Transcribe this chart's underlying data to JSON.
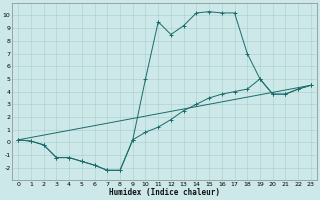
{
  "xlabel": "Humidex (Indice chaleur)",
  "background_color": "#cce8e8",
  "grid_color": "#aacccc",
  "line_color": "#1a6b6b",
  "xlim": [
    -0.5,
    23.5
  ],
  "ylim": [
    -3,
    11
  ],
  "xticks": [
    0,
    1,
    2,
    3,
    4,
    5,
    6,
    7,
    8,
    9,
    10,
    11,
    12,
    13,
    14,
    15,
    16,
    17,
    18,
    19,
    20,
    21,
    22,
    23
  ],
  "yticks": [
    -2,
    -1,
    0,
    1,
    2,
    3,
    4,
    5,
    6,
    7,
    8,
    9,
    10
  ],
  "line1_x": [
    0,
    1,
    2,
    3,
    4,
    5,
    6,
    7,
    8,
    9,
    10,
    11,
    12,
    13,
    14,
    15,
    16,
    17,
    18,
    19,
    20,
    21,
    22,
    23
  ],
  "line1_y": [
    0.2,
    0.1,
    -0.2,
    -1.2,
    -1.2,
    -1.5,
    -1.8,
    -2.2,
    -2.2,
    0.2,
    5.0,
    9.5,
    8.5,
    9.2,
    10.2,
    10.3,
    10.2,
    10.2,
    7.0,
    5.0,
    3.8,
    3.8,
    4.2,
    4.5
  ],
  "line2_x": [
    0,
    1,
    2,
    3,
    4,
    5,
    6,
    7,
    8,
    9,
    10,
    11,
    12,
    13,
    14,
    15,
    16,
    17,
    18,
    19,
    20,
    21,
    22,
    23
  ],
  "line2_y": [
    0.2,
    0.1,
    -0.2,
    -1.2,
    -1.2,
    -1.5,
    -1.8,
    -2.2,
    -2.2,
    0.2,
    0.8,
    1.2,
    1.8,
    2.5,
    3.0,
    3.5,
    3.8,
    4.0,
    4.2,
    5.0,
    3.8,
    3.8,
    4.2,
    4.5
  ],
  "line3_x": [
    0,
    23
  ],
  "line3_y": [
    0.2,
    4.5
  ]
}
